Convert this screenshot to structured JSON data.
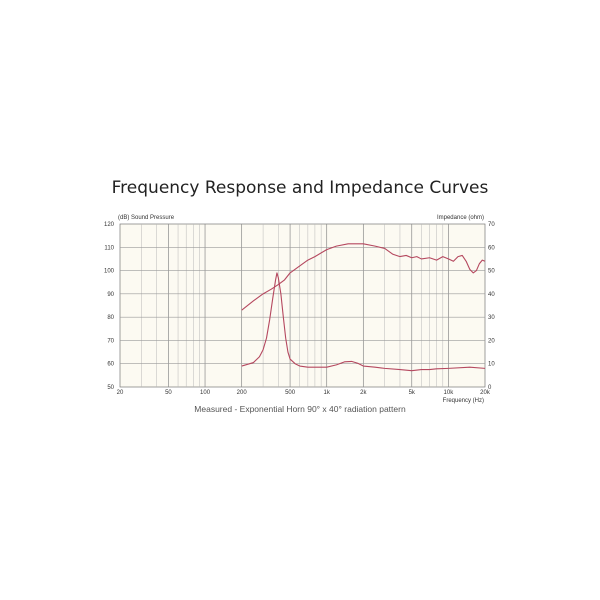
{
  "title": "Frequency Response and Impedance Curves",
  "caption": "Measured - Exponential Horn 90° x 40° radiation pattern",
  "chart_data": {
    "type": "line",
    "title": "Frequency Response and Impedance Curves",
    "xlabel": "Frequency (Hz)",
    "ylabel": "(dB) Sound Pressure",
    "y2label": "Impedance (ohm)",
    "xscale": "log",
    "xlim": [
      20,
      20000
    ],
    "ylim": [
      50,
      120
    ],
    "y2lim": [
      0,
      70
    ],
    "grid": true,
    "line_color": "#b5485f",
    "x_ticks": [
      {
        "value": 20,
        "label": "20"
      },
      {
        "value": 50,
        "label": "50"
      },
      {
        "value": 100,
        "label": "100"
      },
      {
        "value": 200,
        "label": "200"
      },
      {
        "value": 500,
        "label": "500"
      },
      {
        "value": 1000,
        "label": "1k"
      },
      {
        "value": 2000,
        "label": "2k"
      },
      {
        "value": 5000,
        "label": "5k"
      },
      {
        "value": 10000,
        "label": "10k"
      },
      {
        "value": 20000,
        "label": "20k"
      }
    ],
    "y_ticks": [
      "50",
      "60",
      "70",
      "80",
      "90",
      "100",
      "110",
      "120"
    ],
    "y2_ticks": [
      "0",
      "10",
      "20",
      "30",
      "40",
      "50",
      "60",
      "70"
    ],
    "series": [
      {
        "axis": "left",
        "points": [
          [
            200,
            83
          ],
          [
            250,
            87
          ],
          [
            300,
            90
          ],
          [
            350,
            92
          ],
          [
            400,
            94
          ],
          [
            450,
            96
          ],
          [
            500,
            99
          ],
          [
            600,
            102
          ],
          [
            700,
            104.5
          ],
          [
            800,
            106
          ],
          [
            1000,
            109
          ],
          [
            1200,
            110.5
          ],
          [
            1500,
            111.5
          ],
          [
            2000,
            111.5
          ],
          [
            2500,
            110.5
          ],
          [
            3000,
            109.5
          ],
          [
            3500,
            107
          ],
          [
            4000,
            106
          ],
          [
            4500,
            106.5
          ],
          [
            5000,
            105.5
          ],
          [
            5500,
            106
          ],
          [
            6000,
            105
          ],
          [
            7000,
            105.5
          ],
          [
            8000,
            104.5
          ],
          [
            9000,
            106
          ],
          [
            10000,
            105
          ],
          [
            11000,
            104
          ],
          [
            12000,
            106
          ],
          [
            13000,
            106.5
          ],
          [
            14000,
            104
          ],
          [
            15000,
            100.5
          ],
          [
            16000,
            99
          ],
          [
            17000,
            100
          ],
          [
            18000,
            103
          ],
          [
            19000,
            104.5
          ],
          [
            20000,
            104
          ]
        ]
      },
      {
        "axis": "right",
        "points": [
          [
            200,
            9
          ],
          [
            250,
            10.5
          ],
          [
            280,
            13
          ],
          [
            300,
            16
          ],
          [
            320,
            21
          ],
          [
            340,
            29
          ],
          [
            360,
            38
          ],
          [
            380,
            46
          ],
          [
            390,
            49
          ],
          [
            400,
            47
          ],
          [
            420,
            40
          ],
          [
            440,
            30
          ],
          [
            460,
            21
          ],
          [
            480,
            15
          ],
          [
            500,
            12
          ],
          [
            550,
            10
          ],
          [
            600,
            9
          ],
          [
            700,
            8.5
          ],
          [
            800,
            8.5
          ],
          [
            1000,
            8.5
          ],
          [
            1200,
            9.5
          ],
          [
            1400,
            10.8
          ],
          [
            1600,
            11
          ],
          [
            1800,
            10.2
          ],
          [
            2000,
            9
          ],
          [
            2500,
            8.5
          ],
          [
            3000,
            8
          ],
          [
            4000,
            7.5
          ],
          [
            5000,
            7
          ],
          [
            6000,
            7.5
          ],
          [
            7000,
            7.5
          ],
          [
            8000,
            7.8
          ],
          [
            10000,
            8
          ],
          [
            15000,
            8.5
          ],
          [
            20000,
            8
          ]
        ]
      }
    ]
  }
}
